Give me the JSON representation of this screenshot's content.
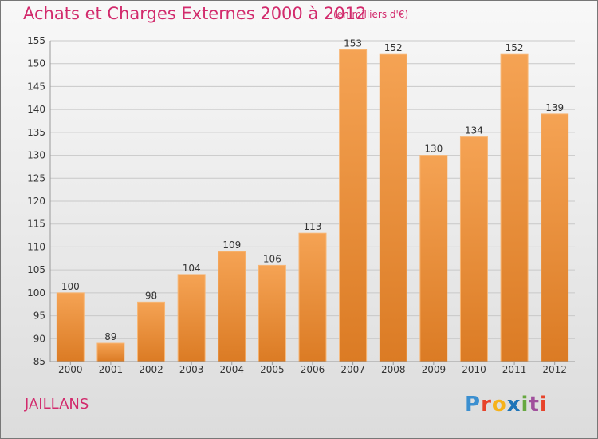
{
  "header": {
    "title": "Achats et Charges Externes 2000 à 2012",
    "subtitle": "(en milliers d'€)"
  },
  "footer": {
    "town": "JAILLANS",
    "brand": "Proxiti"
  },
  "colors": {
    "accent": "#d22a6c",
    "bar_top": "#f5a354",
    "bar_bottom": "#db7b24",
    "grid": "#c8c8c8"
  },
  "chart_data": {
    "type": "bar",
    "categories": [
      "2000",
      "2001",
      "2002",
      "2003",
      "2004",
      "2005",
      "2006",
      "2007",
      "2008",
      "2009",
      "2010",
      "2011",
      "2012"
    ],
    "values": [
      100,
      89,
      98,
      104,
      109,
      106,
      113,
      153,
      152,
      130,
      134,
      152,
      139
    ],
    "ylim": [
      85,
      155
    ],
    "yticks": [
      85,
      90,
      95,
      100,
      105,
      110,
      115,
      120,
      125,
      130,
      135,
      140,
      145,
      150,
      155
    ],
    "grid": true
  }
}
